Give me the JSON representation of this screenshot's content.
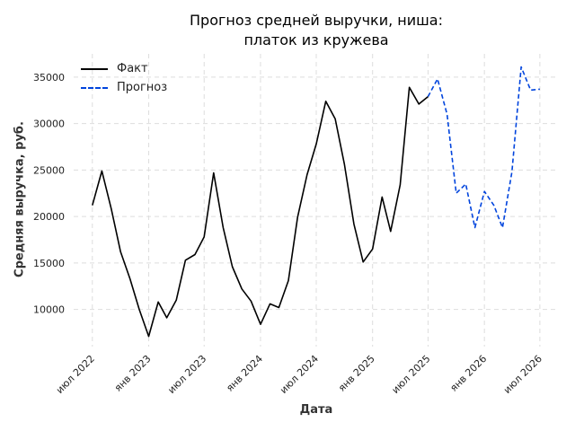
{
  "chart_data": {
    "type": "line",
    "title_line1": "Прогноз средней выручки, ниша:",
    "title_line2": "платок из кружева",
    "xlabel": "Дата",
    "ylabel": "Средняя выручка, руб.",
    "ylim": [
      6000,
      37500
    ],
    "yticks": [
      10000,
      15000,
      20000,
      25000,
      30000,
      35000
    ],
    "xticks": [
      {
        "label": "июл 2022",
        "date": "2022-07-01"
      },
      {
        "label": "янв 2023",
        "date": "2023-01-01"
      },
      {
        "label": "июл 2023",
        "date": "2023-07-01"
      },
      {
        "label": "янв 2024",
        "date": "2024-01-01"
      },
      {
        "label": "июл 2024",
        "date": "2024-07-01"
      },
      {
        "label": "янв 2025",
        "date": "2025-01-01"
      },
      {
        "label": "июл 2025",
        "date": "2025-07-01"
      },
      {
        "label": "янв 2026",
        "date": "2026-01-01"
      },
      {
        "label": "июл 2026",
        "date": "2026-07-01"
      }
    ],
    "grid": true,
    "legend_position": "top-left",
    "series": [
      {
        "name": "Факт",
        "color": "#000000",
        "style": "solid",
        "x": [
          "2022-07-01",
          "2022-08-01",
          "2022-09-01",
          "2022-10-01",
          "2022-11-01",
          "2022-12-01",
          "2023-01-01",
          "2023-02-01",
          "2023-03-01",
          "2023-04-01",
          "2023-05-01",
          "2023-06-01",
          "2023-07-01",
          "2023-08-01",
          "2023-09-01",
          "2023-10-01",
          "2023-11-01",
          "2023-12-01",
          "2024-01-01",
          "2024-02-01",
          "2024-03-01",
          "2024-04-01",
          "2024-05-01",
          "2024-06-01",
          "2024-07-01",
          "2024-08-01",
          "2024-09-01",
          "2024-10-01",
          "2024-11-01",
          "2024-12-01",
          "2025-01-01",
          "2025-02-01",
          "2025-03-01",
          "2025-04-01",
          "2025-05-01",
          "2025-06-01",
          "2025-07-01"
        ],
        "y": [
          21200,
          24900,
          20800,
          16200,
          13300,
          10000,
          7100,
          10800,
          9100,
          11000,
          15300,
          15900,
          17800,
          24700,
          18800,
          14600,
          12200,
          10900,
          8400,
          10600,
          10200,
          13100,
          19900,
          24500,
          27800,
          32400,
          30500,
          25600,
          19200,
          15100,
          16500,
          22100,
          18400,
          23400,
          33900,
          32100,
          32900
        ]
      },
      {
        "name": "Прогноз",
        "color": "#0044dd",
        "style": "dashed",
        "x": [
          "2025-07-01",
          "2025-08-01",
          "2025-09-01",
          "2025-10-01",
          "2025-11-01",
          "2025-12-01",
          "2026-01-01",
          "2026-02-01",
          "2026-03-01",
          "2026-04-01",
          "2026-05-01",
          "2026-06-01",
          "2026-07-01"
        ],
        "y": [
          32900,
          34800,
          31000,
          22500,
          23500,
          18800,
          22700,
          21200,
          18800,
          24800,
          36100,
          33600,
          33700
        ]
      }
    ]
  }
}
